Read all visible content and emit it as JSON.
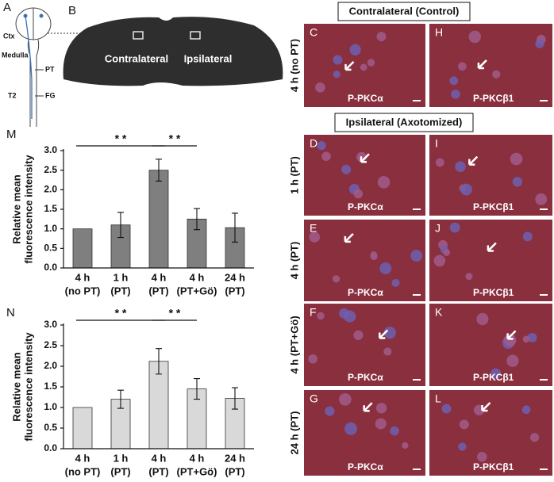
{
  "chart_data": [
    {
      "type": "bar",
      "panel": "M",
      "y_label": [
        "Relative mean",
        "fluorescence intensity"
      ],
      "categories": [
        [
          "4 h",
          "(no PT)"
        ],
        [
          "1 h",
          "(PT)"
        ],
        [
          "4 h",
          "(PT)"
        ],
        [
          "4 h",
          "(PT+Gö)"
        ],
        [
          "24 h",
          "(PT)"
        ]
      ],
      "values": [
        1.0,
        1.1,
        2.5,
        1.25,
        1.03
      ],
      "errors": [
        null,
        0.32,
        0.28,
        0.27,
        0.37
      ],
      "color": "#7f7f7f",
      "ylim": [
        0,
        3
      ],
      "yticks": [
        {
          "value": 0,
          "label": "0.0"
        },
        0.5,
        {
          "value": 1,
          "label": "1.0"
        },
        1.5,
        {
          "value": 2,
          "label": "2.0"
        },
        2.5,
        {
          "value": 3,
          "label": "3.0"
        }
      ],
      "significance": [
        {
          "from": 0,
          "to": 2,
          "label": "* *"
        },
        {
          "from": 2,
          "to": 3,
          "label": "* *"
        }
      ]
    },
    {
      "type": "bar",
      "panel": "N",
      "y_label": [
        "Relative mean",
        "fluorescence intensity"
      ],
      "categories": [
        [
          "4 h",
          "(no PT)"
        ],
        [
          "1 h",
          "(PT)"
        ],
        [
          "4 h",
          "(PT)"
        ],
        [
          "4 h",
          "(PT+Gö)"
        ],
        [
          "24 h",
          "(PT)"
        ]
      ],
      "values": [
        1.0,
        1.2,
        2.12,
        1.45,
        1.22
      ],
      "errors": [
        null,
        0.22,
        0.31,
        0.25,
        0.26
      ],
      "color": "#d9d9d9",
      "ylim": [
        0,
        3
      ],
      "yticks": [
        {
          "value": 0,
          "label": "0.0"
        },
        0.5,
        {
          "value": 1,
          "label": "1.0"
        },
        1.5,
        {
          "value": 2,
          "label": "2.0"
        },
        2.5,
        {
          "value": 3,
          "label": "3.0"
        }
      ],
      "significance": [
        {
          "from": 0,
          "to": 2,
          "label": "* *"
        },
        {
          "from": 2,
          "to": 3,
          "label": "* *"
        }
      ]
    }
  ],
  "schematic": {
    "label": "A",
    "texts": [
      "Ctx",
      "Medulla",
      "PT",
      "T2",
      "FG"
    ]
  },
  "slice": {
    "label": "B",
    "regions": [
      "Contralateral",
      "Ipsilateral"
    ]
  },
  "micrographs": {
    "headers": [
      "Contralateral (Control)",
      "Ipsilateral (Axotomized)"
    ],
    "rows": [
      {
        "label": "4 h (no PT)",
        "panels": [
          {
            "letter": "C",
            "stain": "P-PKCα"
          },
          {
            "letter": "H",
            "stain": "P-PKCβ1"
          }
        ]
      },
      {
        "label": "1 h (PT)",
        "panels": [
          {
            "letter": "D",
            "stain": "P-PKCα"
          },
          {
            "letter": "I",
            "stain": "P-PKCβ1"
          }
        ]
      },
      {
        "label": "4 h (PT)",
        "panels": [
          {
            "letter": "E",
            "stain": "P-PKCα"
          },
          {
            "letter": "J",
            "stain": "P-PKCβ1"
          }
        ]
      },
      {
        "label": "4 h (PT+Gö)",
        "panels": [
          {
            "letter": "F",
            "stain": "P-PKCα"
          },
          {
            "letter": "K",
            "stain": "P-PKCβ1"
          }
        ]
      },
      {
        "label": "24 h (PT)",
        "panels": [
          {
            "letter": "G",
            "stain": "P-PKCα"
          },
          {
            "letter": "L",
            "stain": "P-PKCβ1"
          }
        ]
      }
    ]
  }
}
